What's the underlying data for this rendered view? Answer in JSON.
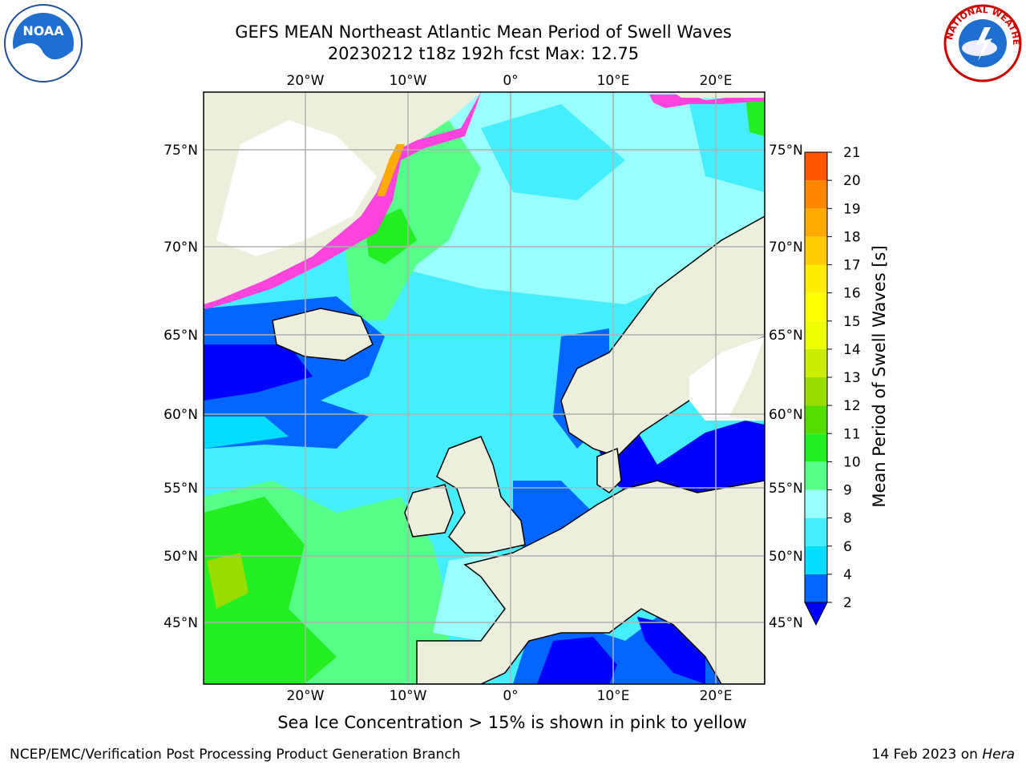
{
  "title_line1": "GEFS MEAN Northeast Atlantic Mean Period of Swell Waves",
  "title_line2": "20230212 t18z 192h fcst   Max: 12.75",
  "footer_note": "Sea Ice Concentration > 15% is shown in pink to yellow",
  "credit": "NCEP/EMC/Verification Post Processing Product Generation Branch",
  "date_prefix": "14 Feb 2023 on ",
  "date_host": "Hera",
  "logos": {
    "left": "noaa-logo",
    "right": "national-weather-service-logo",
    "left_text": "NOAA",
    "right_text": "NATIONAL WEATHER SERVICE"
  },
  "map": {
    "lon_labels": [
      "20°W",
      "10°W",
      "0°",
      "10°E",
      "20°E"
    ],
    "lat_labels": [
      "75°N",
      "70°N",
      "65°N",
      "60°N",
      "55°N",
      "50°N",
      "45°N"
    ],
    "colors": {
      "land": "#eeeedd",
      "ice_free_white": "#ffffff",
      "grid": "#b0b0b0"
    }
  },
  "colorbar": {
    "label": "Mean Period of Swell Waves [s]",
    "ticks": [
      "2",
      "4",
      "6",
      "8",
      "9",
      "10",
      "11",
      "12",
      "13",
      "14",
      "15",
      "16",
      "17",
      "18",
      "19",
      "20",
      "21"
    ],
    "colors": [
      "#0066ff",
      "#00ddff",
      "#44eeff",
      "#99ffff",
      "#55ff88",
      "#22ee22",
      "#55dd00",
      "#99dd00",
      "#ccee00",
      "#eeff00",
      "#ffff00",
      "#ffee00",
      "#ffcc00",
      "#ffaa00",
      "#ff8800",
      "#ff5500",
      "#ff2200",
      "#ff0000"
    ],
    "under_color": "#0000ff"
  }
}
